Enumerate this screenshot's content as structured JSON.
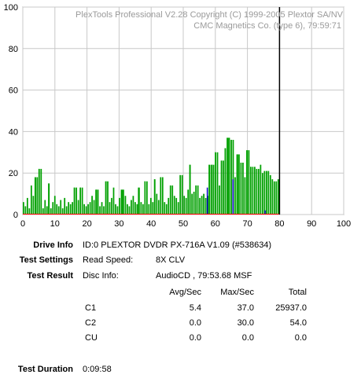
{
  "app": {
    "watermark_line1": "PlexTools Professional V2.28 Copyright (C) 1999-2005 Plextor SA/NV",
    "watermark_line2": "CMC Magnetics Co. (type 6), 79:59:71"
  },
  "chart_data": {
    "type": "bar",
    "xlim": [
      0,
      100
    ],
    "ylim": [
      0,
      100
    ],
    "x_ticks": [
      "0",
      "10",
      "20",
      "30",
      "40",
      "50",
      "60",
      "70",
      "80",
      "90",
      "100"
    ],
    "y_ticks": [
      "0",
      "20",
      "40",
      "60",
      "80",
      "100"
    ],
    "grid": true,
    "end_marker_x": 80,
    "series": [
      {
        "color": "#00a000",
        "baseline": [
          6,
          4,
          8,
          3,
          14,
          9,
          6,
          3,
          5,
          16,
          3,
          7,
          4,
          5,
          3,
          6,
          9,
          5,
          4,
          7,
          3,
          8,
          4,
          6,
          5,
          6,
          5,
          6,
          7,
          4,
          8,
          5,
          4,
          5,
          6,
          9,
          7,
          9,
          5,
          4,
          6,
          4,
          5,
          7,
          6,
          8,
          13,
          5,
          4,
          8,
          3,
          7,
          9,
          5,
          4,
          7,
          9,
          6,
          5,
          8,
          6,
          5,
          8,
          4,
          5,
          8,
          6,
          10,
          10,
          7,
          9,
          8,
          6,
          5,
          8,
          7,
          7,
          9,
          8,
          6,
          11,
          10,
          9,
          8,
          12,
          9,
          10,
          11,
          13,
          9,
          8,
          9,
          10,
          8,
          9,
          11,
          10,
          16,
          11,
          13,
          14,
          17,
          17,
          13,
          15,
          15,
          17,
          18,
          18,
          23,
          17,
          17,
          20,
          18,
          22,
          19,
          19,
          21,
          23,
          22,
          22,
          24,
          20,
          21,
          17,
          18,
          19,
          17,
          16,
          16,
          17
        ],
        "spikes": [
          [
            4,
            18
          ],
          [
            5,
            22
          ],
          [
            8,
            15
          ],
          [
            16,
            13
          ],
          [
            18,
            13
          ],
          [
            23,
            12
          ],
          [
            26,
            16
          ],
          [
            31,
            12
          ],
          [
            36,
            13
          ],
          [
            38,
            16
          ],
          [
            41,
            17
          ],
          [
            43,
            18
          ],
          [
            46,
            14
          ],
          [
            49,
            19
          ],
          [
            52,
            24
          ],
          [
            54,
            14
          ],
          [
            58,
            24
          ],
          [
            59,
            24
          ],
          [
            60,
            30
          ],
          [
            62,
            26
          ],
          [
            63,
            32
          ],
          [
            64,
            37
          ],
          [
            65,
            36
          ],
          [
            67,
            29
          ],
          [
            68,
            25
          ],
          [
            70,
            31
          ],
          [
            71,
            23
          ],
          [
            76,
            21
          ]
        ]
      },
      {
        "color": "#0000c0",
        "points": [
          [
            57.5,
            13
          ],
          [
            65.5,
            17
          ],
          [
            75.5,
            2
          ]
        ]
      },
      {
        "color": "#ff0000",
        "points": [
          [
            80,
            1
          ]
        ]
      }
    ]
  },
  "info": {
    "drive_label": "Drive Info",
    "drive_value": "ID:0 PLEXTOR DVDR PX-716A V1.09 (#538634)",
    "settings_label": "Test Settings",
    "read_speed_label": "Read Speed:",
    "read_speed_value": "8X CLV",
    "result_label": "Test Result",
    "disc_info_label": "Disc Info:",
    "disc_info_value": "AudioCD , 79:53.68 MSF",
    "table": {
      "headers": [
        "Avg/Sec",
        "Max/Sec",
        "Total"
      ],
      "rows": [
        {
          "name": "C1",
          "avg": "5.4",
          "max": "37.0",
          "total": "25937.0"
        },
        {
          "name": "C2",
          "avg": "0.0",
          "max": "30.0",
          "total": "54.0"
        },
        {
          "name": "CU",
          "avg": "0.0",
          "max": "0.0",
          "total": "0.0"
        }
      ]
    },
    "duration_label": "Test Duration",
    "duration_value": "0:09:58"
  }
}
